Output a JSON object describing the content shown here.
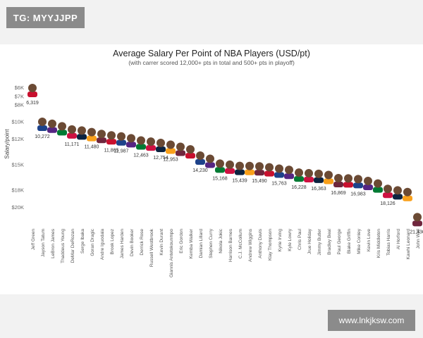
{
  "watermark_top": "TG: MYYJJPP",
  "watermark_bottom": "www.lnkjksw.com",
  "colors": {
    "face": "#6b4a34",
    "jersey_palette": [
      "#c8102e",
      "#1d428a",
      "#552583",
      "#007a33",
      "#ce1141",
      "#0c2340",
      "#f9a01b",
      "#6f263d"
    ]
  },
  "chart_data": {
    "type": "scatter",
    "title": "Average Salary Per Point of NBA Players (USD/pt)",
    "subtitle": "(with carrer scored 12,000+ pts in total and 500+ pts in playoff)",
    "ylabel": "Salary/point",
    "y_reversed": true,
    "ylim": [
      5000,
      20500
    ],
    "y_ticks": [
      {
        "value": 6000,
        "label": "$6K"
      },
      {
        "value": 7000,
        "label": "$7K"
      },
      {
        "value": 8000,
        "label": "$8K"
      },
      {
        "value": 10000,
        "label": "$10K"
      },
      {
        "value": 12000,
        "label": "$12K"
      },
      {
        "value": 15000,
        "label": "$15K"
      },
      {
        "value": 18000,
        "label": "$18K"
      },
      {
        "value": 20000,
        "label": "$20K"
      }
    ],
    "players": [
      {
        "name": "Jeff Green",
        "value": 6319,
        "label": "6,319"
      },
      {
        "name": "Jayson Tatum",
        "value": 10272,
        "label": "10,272"
      },
      {
        "name": "LeBron James",
        "value": 10500,
        "label": ""
      },
      {
        "name": "Thaddeus Young",
        "value": 10800,
        "label": ""
      },
      {
        "name": "DeMar DeRozan",
        "value": 11171,
        "label": "11,171"
      },
      {
        "name": "Serge Ibaka",
        "value": 11300,
        "label": ""
      },
      {
        "name": "Goran Dragic",
        "value": 11480,
        "label": "11,480"
      },
      {
        "name": "Andre Iguodala",
        "value": 11700,
        "label": ""
      },
      {
        "name": "Brook Lopez",
        "value": 11865,
        "label": "11,865"
      },
      {
        "name": "James Harden",
        "value": 11987,
        "label": "11,987"
      },
      {
        "name": "Devin Booker",
        "value": 12200,
        "label": ""
      },
      {
        "name": "Derrick Rose",
        "value": 12463,
        "label": "12,463"
      },
      {
        "name": "Russell Westbrook",
        "value": 12600,
        "label": ""
      },
      {
        "name": "Kevin Durant",
        "value": 12754,
        "label": "12,754"
      },
      {
        "name": "Giannis Antetokounmpo",
        "value": 12953,
        "label": "12,953"
      },
      {
        "name": "Eric Gordon",
        "value": 13200,
        "label": ""
      },
      {
        "name": "Kemba Walker",
        "value": 13500,
        "label": ""
      },
      {
        "name": "Damian Lillard",
        "value": 14230,
        "label": "14,230"
      },
      {
        "name": "Stephen Curry",
        "value": 14600,
        "label": ""
      },
      {
        "name": "Nikola Jokic",
        "value": 15168,
        "label": "15,168"
      },
      {
        "name": "Harrison Barnes",
        "value": 15300,
        "label": ""
      },
      {
        "name": "C.J. McCollum",
        "value": 15439,
        "label": "15,439"
      },
      {
        "name": "Andrew Wiggins",
        "value": 15450,
        "label": ""
      },
      {
        "name": "Anthony Davis",
        "value": 15490,
        "label": "15,490"
      },
      {
        "name": "Klay Thompson",
        "value": 15600,
        "label": ""
      },
      {
        "name": "Kyrie Irving",
        "value": 15763,
        "label": "15,763"
      },
      {
        "name": "Kyle Lowry",
        "value": 15900,
        "label": ""
      },
      {
        "name": "Chris Paul",
        "value": 16228,
        "label": "16,228"
      },
      {
        "name": "Jrue Holiday",
        "value": 16300,
        "label": ""
      },
      {
        "name": "Jimmy Butler",
        "value": 16363,
        "label": "16,363"
      },
      {
        "name": "Bradley Beal",
        "value": 16500,
        "label": ""
      },
      {
        "name": "Paul George",
        "value": 16869,
        "label": "16,869"
      },
      {
        "name": "Blake Griffin",
        "value": 16900,
        "label": ""
      },
      {
        "name": "Mike Conley",
        "value": 16983,
        "label": "16,983"
      },
      {
        "name": "Kevin Love",
        "value": 17200,
        "label": ""
      },
      {
        "name": "Kris Middleton",
        "value": 17500,
        "label": ""
      },
      {
        "name": "Tobias Harris",
        "value": 18126,
        "label": "18,126"
      },
      {
        "name": "Al Horford",
        "value": 18300,
        "label": ""
      },
      {
        "name": "Kawhi Leonard",
        "value": 18500,
        "label": ""
      },
      {
        "name": "John Wall",
        "value": 21436,
        "label": "21,436"
      }
    ]
  }
}
